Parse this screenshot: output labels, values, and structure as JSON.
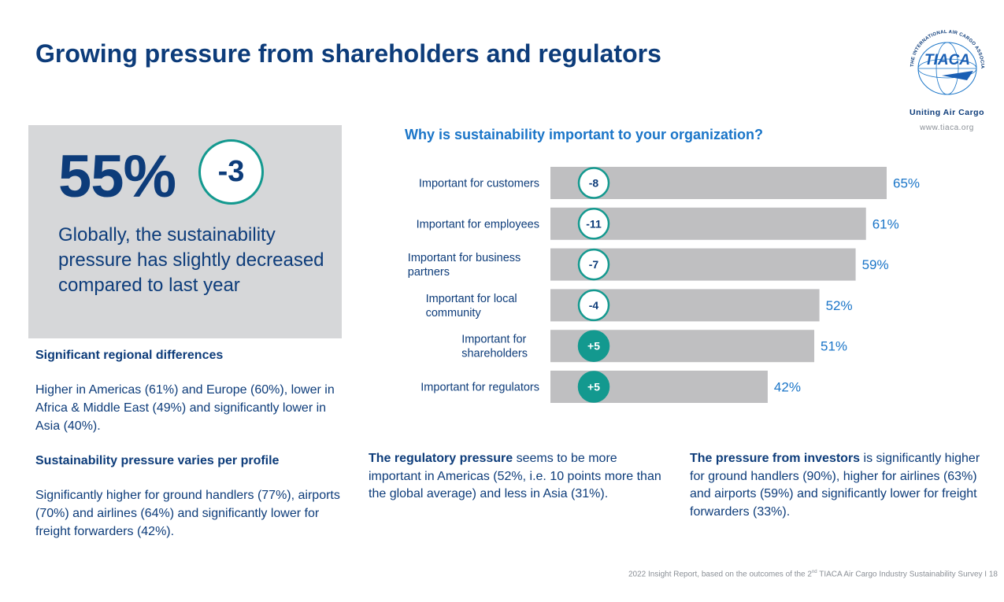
{
  "page": {
    "title": "Growing pressure from shareholders and regulators",
    "logo_text": "TIACA",
    "logo_ring_text": "THE INTERNATIONAL AIR CARGO ASSOCIATION",
    "tagline": "Uniting Air Cargo",
    "website": "www.tiaca.org"
  },
  "kpi": {
    "value": "55%",
    "delta": "-3",
    "description": "Globally, the sustainability pressure has slightly decreased compared to last year"
  },
  "regional": {
    "heading": "Significant regional differences",
    "text": "Higher in Americas (61%) and Europe (60%), lower in Africa & Middle East (49%) and significantly lower in Asia (40%)."
  },
  "profile": {
    "heading": "Sustainability pressure varies per profile",
    "text": "Significantly higher for ground handlers (77%), airports (70%) and airlines (64%) and significantly lower for freight forwarders (42%)."
  },
  "notes": {
    "regulatory_bold": "The regulatory pressure",
    "regulatory_text": " seems to be more important in Americas (52%, i.e. 10 points more than the global average) and less in Asia (31%).",
    "investors_bold": "The pressure from investors",
    "investors_text": " is significantly higher for ground handlers (90%), higher for airlines (63%) and airports (59%) and significantly lower for freight forwarders (33%)."
  },
  "footer": {
    "text_before": "2022 Insight Report, based on the outcomes of the 2",
    "sup": "nd",
    "text_after": " TIACA Air Cargo Industry Sustainability Survey I 18"
  },
  "colors": {
    "navy": "#0d3c7a",
    "blue_accent": "#1a75c8",
    "teal": "#13998f",
    "bar_grey": "#bfbfc1",
    "panel_grey": "#d6d7d9"
  },
  "chart_data": {
    "type": "bar",
    "orientation": "horizontal",
    "title": "Why is sustainability important to your organization?",
    "categories": [
      [
        "Important for customers"
      ],
      [
        "Important for employees"
      ],
      [
        "Important for business",
        "partners"
      ],
      [
        "Important for local",
        "community"
      ],
      [
        "Important for",
        "shareholders"
      ],
      [
        "Important for regulators"
      ]
    ],
    "values": [
      65,
      61,
      59,
      52,
      51,
      42
    ],
    "value_labels": [
      "65%",
      "61%",
      "59%",
      "52%",
      "51%",
      "42%"
    ],
    "changes": [
      "-8",
      "-11",
      "-7",
      "-4",
      "+5",
      "+5"
    ],
    "unit": "%"
  }
}
